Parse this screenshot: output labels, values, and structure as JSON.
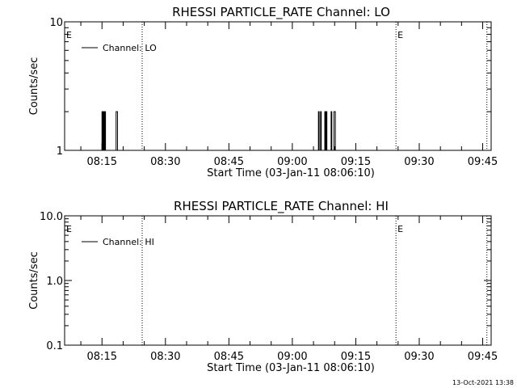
{
  "timestamp": "13-Oct-2021 13:38",
  "chart_data": [
    {
      "type": "line",
      "title": "RHESSI PARTICLE_RATE Channel: LO",
      "xlabel": "Start Time (03-Jan-11 08:06:10)",
      "ylabel": "Counts/sec",
      "y_scale": "log",
      "ylim": [
        1,
        10
      ],
      "y_ticks": [
        1,
        10
      ],
      "y_tick_labels": [
        "1",
        "10"
      ],
      "xlim": [
        "08:06:10",
        "09:47:00"
      ],
      "x_ticks": [
        "08:15",
        "08:30",
        "08:45",
        "09:00",
        "09:15",
        "09:30",
        "09:45"
      ],
      "legend": "top-left",
      "series": [
        {
          "name": "Channel: LO",
          "x": [
            "08:14:40",
            "08:15:00",
            "08:15:10",
            "08:15:20",
            "08:15:30",
            "08:15:40",
            "08:15:50",
            "08:18:00",
            "08:18:20",
            "08:18:40",
            "09:06:00",
            "09:06:10",
            "09:06:20",
            "09:06:40",
            "09:06:50",
            "09:07:30",
            "09:07:40",
            "09:07:50",
            "09:08:00",
            "09:08:10",
            "09:09:00",
            "09:09:10",
            "09:09:20",
            "09:09:40",
            "09:09:50",
            "09:10:00",
            "09:10:10"
          ],
          "y": [
            1,
            2,
            1,
            2,
            1,
            2,
            1,
            1,
            2,
            1,
            1,
            2,
            1,
            2,
            1,
            1,
            2,
            1,
            2,
            1,
            1,
            2,
            1,
            1,
            2,
            2,
            1
          ]
        }
      ],
      "vlines": [
        "08:24:30",
        "09:24:30",
        "09:46:00"
      ],
      "markers": [
        {
          "text": "E",
          "x": "08:06:10"
        },
        {
          "text": "E",
          "x": "09:24:30"
        }
      ]
    },
    {
      "type": "line",
      "title": "RHESSI PARTICLE_RATE Channel: HI",
      "xlabel": "Start Time (03-Jan-11 08:06:10)",
      "ylabel": "Counts/sec",
      "y_scale": "log",
      "ylim": [
        0.1,
        10
      ],
      "y_ticks": [
        0.1,
        1,
        10
      ],
      "y_tick_labels": [
        "0.1",
        "1.0",
        "10.0"
      ],
      "xlim": [
        "08:06:10",
        "09:47:00"
      ],
      "x_ticks": [
        "08:15",
        "08:30",
        "08:45",
        "09:00",
        "09:15",
        "09:30",
        "09:45"
      ],
      "legend": "top-left",
      "series": [
        {
          "name": "Channel: HI",
          "x": [],
          "y": []
        }
      ],
      "vlines": [
        "08:24:30",
        "09:24:30",
        "09:46:00"
      ],
      "markers": [
        {
          "text": "E",
          "x": "08:06:10"
        },
        {
          "text": "E",
          "x": "09:24:30"
        }
      ]
    }
  ]
}
